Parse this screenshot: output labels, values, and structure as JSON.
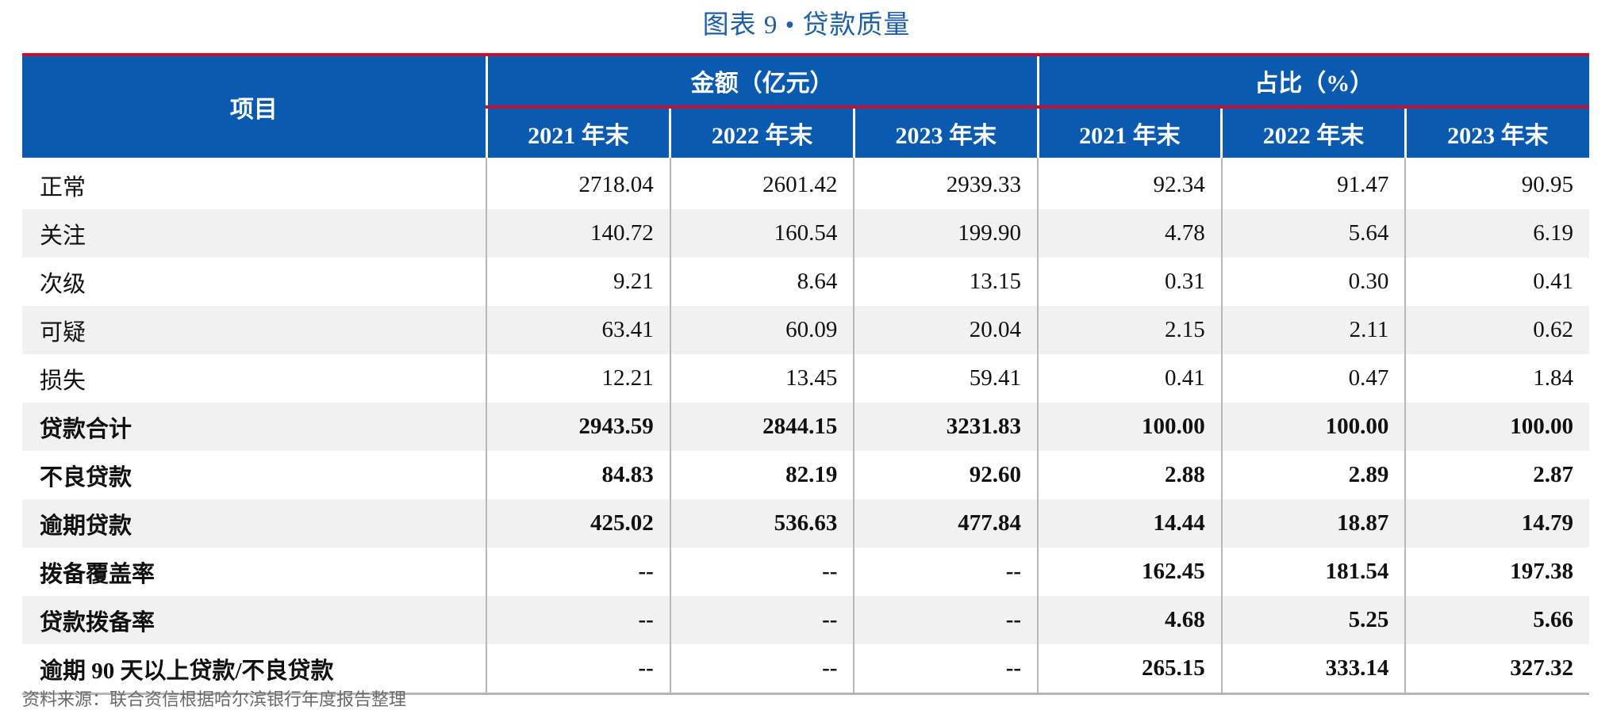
{
  "caption": "图表 9 •  贷款质量",
  "header": {
    "item_label": "项目",
    "group_amount": "金额（亿元）",
    "group_share": "占比（%）",
    "years": [
      "2021 年末",
      "2022 年末",
      "2023 年末",
      "2021 年末",
      "2022 年末",
      "2023 年末"
    ]
  },
  "rows": [
    {
      "label": "正常",
      "bold": false,
      "values": [
        "2718.04",
        "2601.42",
        "2939.33",
        "92.34",
        "91.47",
        "90.95"
      ]
    },
    {
      "label": "关注",
      "bold": false,
      "values": [
        "140.72",
        "160.54",
        "199.90",
        "4.78",
        "5.64",
        "6.19"
      ]
    },
    {
      "label": "次级",
      "bold": false,
      "values": [
        "9.21",
        "8.64",
        "13.15",
        "0.31",
        "0.30",
        "0.41"
      ]
    },
    {
      "label": "可疑",
      "bold": false,
      "values": [
        "63.41",
        "60.09",
        "20.04",
        "2.15",
        "2.11",
        "0.62"
      ]
    },
    {
      "label": "损失",
      "bold": false,
      "values": [
        "12.21",
        "13.45",
        "59.41",
        "0.41",
        "0.47",
        "1.84"
      ]
    },
    {
      "label": "贷款合计",
      "bold": true,
      "values": [
        "2943.59",
        "2844.15",
        "3231.83",
        "100.00",
        "100.00",
        "100.00"
      ]
    },
    {
      "label": "不良贷款",
      "bold": true,
      "values": [
        "84.83",
        "82.19",
        "92.60",
        "2.88",
        "2.89",
        "2.87"
      ]
    },
    {
      "label": "逾期贷款",
      "bold": true,
      "values": [
        "425.02",
        "536.63",
        "477.84",
        "14.44",
        "18.87",
        "14.79"
      ]
    },
    {
      "label": "拨备覆盖率",
      "bold": true,
      "values": [
        "--",
        "--",
        "--",
        "162.45",
        "181.54",
        "197.38"
      ]
    },
    {
      "label": "贷款拨备率",
      "bold": true,
      "values": [
        "--",
        "--",
        "--",
        "4.68",
        "5.25",
        "5.66"
      ]
    },
    {
      "label": "逾期 90 天以上贷款/不良贷款",
      "bold": true,
      "values": [
        "--",
        "--",
        "--",
        "265.15",
        "333.14",
        "327.32"
      ]
    }
  ],
  "source": "资料来源：联合资信根据哈尔滨银行年度报告整理"
}
